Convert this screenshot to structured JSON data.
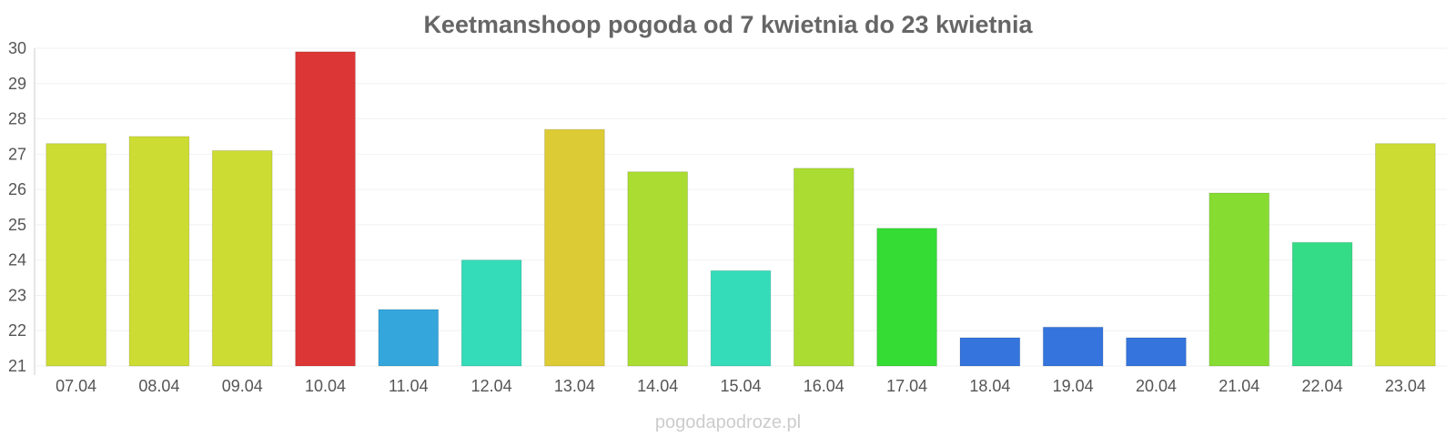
{
  "chart_data": {
    "type": "bar",
    "title": "Keetmanshoop pogoda od 7 kwietnia do 23 kwietnia",
    "xlabel": "",
    "ylabel": "",
    "categories": [
      "07.04",
      "08.04",
      "09.04",
      "10.04",
      "11.04",
      "12.04",
      "13.04",
      "14.04",
      "15.04",
      "16.04",
      "17.04",
      "18.04",
      "19.04",
      "20.04",
      "21.04",
      "22.04",
      "23.04"
    ],
    "values": [
      27.3,
      27.5,
      27.1,
      29.9,
      22.6,
      24.0,
      27.7,
      26.5,
      23.7,
      26.6,
      24.9,
      21.8,
      22.1,
      21.8,
      25.9,
      24.5,
      27.3
    ],
    "colors": [
      "#cddc32",
      "#cddc32",
      "#cddc32",
      "#dc3636",
      "#34a6dc",
      "#34dcb9",
      "#dccb34",
      "#aadc32",
      "#34dcb9",
      "#aadc32",
      "#34dc34",
      "#3474dc",
      "#3474dc",
      "#3474dc",
      "#87dc32",
      "#34dc87",
      "#cddc32"
    ],
    "ylim": [
      21,
      30
    ],
    "yticks": [
      21,
      22,
      23,
      24,
      25,
      26,
      27,
      28,
      29,
      30
    ],
    "grid": true,
    "legend": "none"
  },
  "watermark": "pogodapodroze.pl"
}
